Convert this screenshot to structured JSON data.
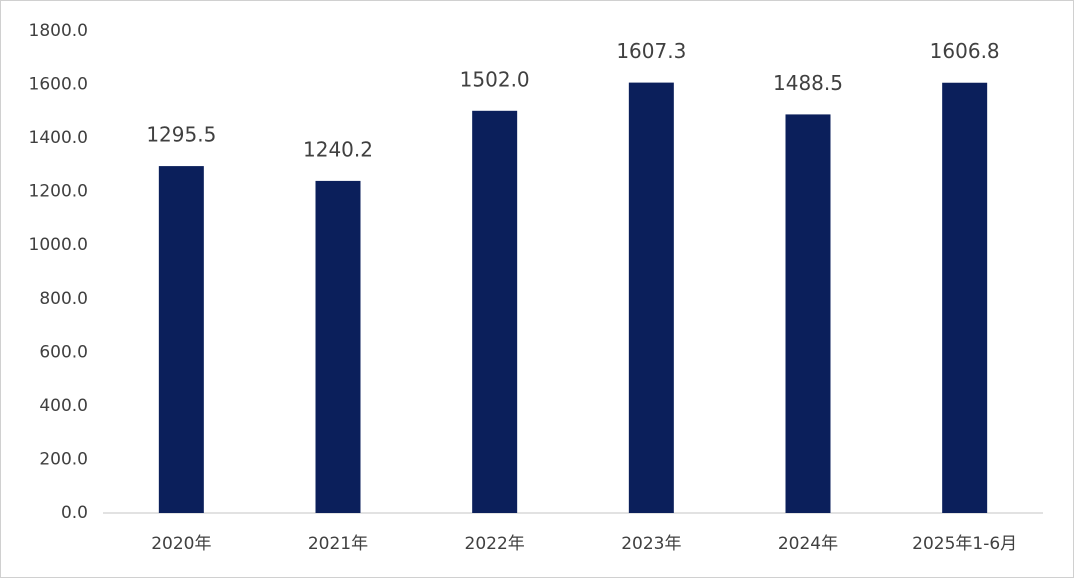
{
  "chart_data": {
    "type": "bar",
    "categories": [
      "2020年",
      "2021年",
      "2022年",
      "2023年",
      "2024年",
      "2025年1-6月"
    ],
    "values": [
      1295.5,
      1240.2,
      1502.0,
      1607.3,
      1488.5,
      1606.8
    ],
    "value_labels": [
      "1295.5",
      "1240.2",
      "1502.0",
      "1607.3",
      "1488.5",
      "1606.8"
    ],
    "color": "#0b1f5b",
    "ylim": [
      0,
      1800
    ],
    "yticks": [
      {
        "value": 0,
        "label": "0.0"
      },
      {
        "value": 200,
        "label": "200.0"
      },
      {
        "value": 400,
        "label": "400.0"
      },
      {
        "value": 600,
        "label": "600.0"
      },
      {
        "value": 800,
        "label": "800.0"
      },
      {
        "value": 1000,
        "label": "1000.0"
      },
      {
        "value": 1200,
        "label": "1200.0"
      },
      {
        "value": 1400,
        "label": "1400.0"
      },
      {
        "value": 1600,
        "label": "1600.0"
      },
      {
        "value": 1800,
        "label": "1800.0"
      }
    ],
    "grid": false
  }
}
